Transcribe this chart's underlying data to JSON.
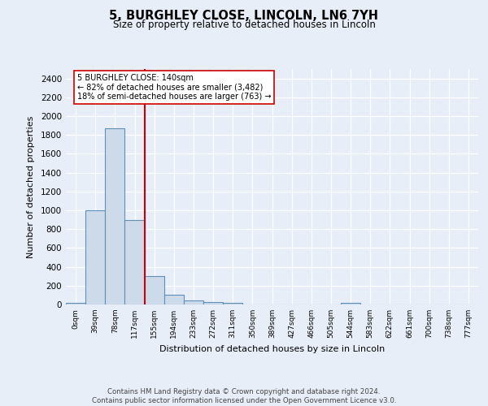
{
  "title": "5, BURGHLEY CLOSE, LINCOLN, LN6 7YH",
  "subtitle": "Size of property relative to detached houses in Lincoln",
  "xlabel": "Distribution of detached houses by size in Lincoln",
  "ylabel": "Number of detached properties",
  "bin_labels": [
    "0sqm",
    "39sqm",
    "78sqm",
    "117sqm",
    "155sqm",
    "194sqm",
    "233sqm",
    "272sqm",
    "311sqm",
    "350sqm",
    "389sqm",
    "427sqm",
    "466sqm",
    "505sqm",
    "544sqm",
    "583sqm",
    "622sqm",
    "661sqm",
    "700sqm",
    "738sqm",
    "777sqm"
  ],
  "bar_heights": [
    20,
    1000,
    1870,
    900,
    300,
    100,
    45,
    30,
    20,
    0,
    0,
    0,
    0,
    0,
    20,
    0,
    0,
    0,
    0,
    0,
    0
  ],
  "bar_color": "#ccdaea",
  "bar_edgecolor": "#6090b8",
  "bar_linewidth": 0.8,
  "vline_x": 3.5,
  "vline_color": "#cc0000",
  "vline_linewidth": 1.5,
  "annotation_box_text": "5 BURGHLEY CLOSE: 140sqm\n← 82% of detached houses are smaller (3,482)\n18% of semi-detached houses are larger (763) →",
  "ylim": [
    0,
    2500
  ],
  "yticks": [
    0,
    200,
    400,
    600,
    800,
    1000,
    1200,
    1400,
    1600,
    1800,
    2000,
    2200,
    2400
  ],
  "fig_bg_color": "#e8eef8",
  "plot_bg_color": "#e8eef8",
  "footer": "Contains HM Land Registry data © Crown copyright and database right 2024.\nContains public sector information licensed under the Open Government Licence v3.0.",
  "figsize": [
    6.0,
    5.0
  ],
  "dpi": 100
}
